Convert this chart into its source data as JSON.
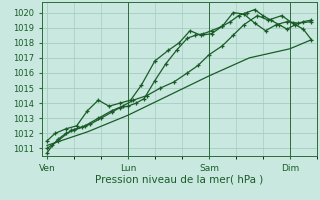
{
  "bg_color": "#c8e8e0",
  "grid_color": "#a0c8b8",
  "line_color": "#1a5c28",
  "xlabel": "Pression niveau de la mer( hPa )",
  "ylim": [
    1010.5,
    1020.7
  ],
  "yticks": [
    1011,
    1012,
    1013,
    1014,
    1015,
    1016,
    1017,
    1018,
    1019,
    1020
  ],
  "xtick_labels": [
    "Ven",
    "Lun",
    "Sam",
    "Dim"
  ],
  "xtick_positions": [
    0,
    30,
    60,
    90
  ],
  "vline_positions": [
    30,
    60,
    90
  ],
  "xlim": [
    -2,
    100
  ],
  "series1_x": [
    0,
    2,
    4,
    7,
    10,
    13,
    16,
    20,
    24,
    27,
    30,
    33,
    36,
    40,
    44,
    48,
    52,
    55,
    58,
    61,
    65,
    68,
    71,
    74,
    77,
    80,
    83,
    86,
    89,
    92,
    95,
    98
  ],
  "series1_y": [
    1010.7,
    1011.2,
    1011.6,
    1012.0,
    1012.2,
    1012.4,
    1012.6,
    1013.0,
    1013.4,
    1013.7,
    1013.8,
    1014.0,
    1014.3,
    1015.5,
    1016.6,
    1017.5,
    1018.3,
    1018.5,
    1018.6,
    1018.8,
    1019.1,
    1019.4,
    1019.8,
    1020.0,
    1020.2,
    1019.8,
    1019.5,
    1019.2,
    1018.9,
    1019.2,
    1019.4,
    1019.5
  ],
  "series2_x": [
    0,
    4,
    9,
    14,
    19,
    24,
    28,
    32,
    37,
    42,
    47,
    52,
    56,
    60,
    65,
    69,
    73,
    78,
    82,
    87,
    91,
    95,
    98
  ],
  "series2_y": [
    1011.0,
    1011.5,
    1012.2,
    1012.5,
    1013.0,
    1013.5,
    1013.8,
    1014.2,
    1014.5,
    1015.0,
    1015.4,
    1016.0,
    1016.5,
    1017.2,
    1017.8,
    1018.5,
    1019.2,
    1019.8,
    1019.5,
    1019.8,
    1019.3,
    1018.9,
    1018.2
  ],
  "series3_x": [
    0,
    15,
    30,
    45,
    60,
    75,
    90,
    98
  ],
  "series3_y": [
    1011.2,
    1012.1,
    1013.2,
    1014.5,
    1015.8,
    1017.0,
    1017.6,
    1018.2
  ],
  "series4_x": [
    0,
    3,
    7,
    11,
    15,
    19,
    23,
    27,
    31,
    35,
    40,
    45,
    49,
    53,
    57,
    61,
    65,
    69,
    73,
    77,
    81,
    85,
    89,
    93,
    98
  ],
  "series4_y": [
    1011.5,
    1012.0,
    1012.3,
    1012.5,
    1013.5,
    1014.2,
    1013.8,
    1014.0,
    1014.2,
    1015.2,
    1016.8,
    1017.5,
    1018.0,
    1018.8,
    1018.5,
    1018.6,
    1019.1,
    1020.0,
    1019.9,
    1019.3,
    1018.8,
    1019.2,
    1019.4,
    1019.3,
    1019.4
  ]
}
